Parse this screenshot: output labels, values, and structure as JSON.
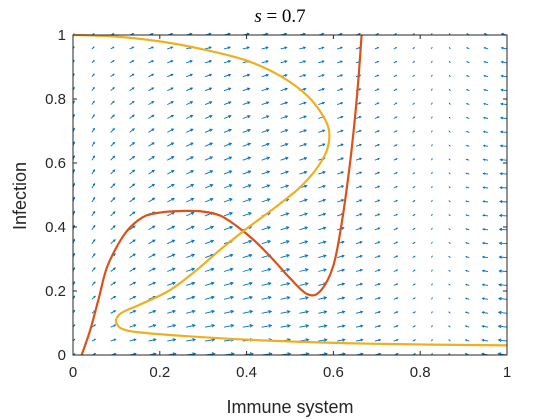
{
  "chart_data": {
    "type": "line",
    "title_var": "s",
    "title_eq": " = 0.7",
    "xlabel": "Immune system",
    "ylabel": "Infection",
    "xlim": [
      0,
      1
    ],
    "ylim": [
      0,
      1
    ],
    "xticks": [
      "0",
      "0.2",
      "0.4",
      "0.6",
      "0.8",
      "1"
    ],
    "yticks": [
      "0",
      "0.2",
      "0.4",
      "0.6",
      "0.8",
      "1"
    ],
    "grid": false,
    "series": [
      {
        "color": "#D95319",
        "points": [
          [
            0.02,
            0.0
          ],
          [
            0.04,
            0.08
          ],
          [
            0.06,
            0.18
          ],
          [
            0.08,
            0.28
          ],
          [
            0.12,
            0.38
          ],
          [
            0.16,
            0.43
          ],
          [
            0.2,
            0.445
          ],
          [
            0.25,
            0.45
          ],
          [
            0.3,
            0.448
          ],
          [
            0.34,
            0.435
          ],
          [
            0.38,
            0.4
          ],
          [
            0.42,
            0.355
          ],
          [
            0.46,
            0.3
          ],
          [
            0.5,
            0.24
          ],
          [
            0.54,
            0.19
          ],
          [
            0.57,
            0.2
          ],
          [
            0.6,
            0.28
          ],
          [
            0.62,
            0.42
          ],
          [
            0.64,
            0.62
          ],
          [
            0.655,
            0.82
          ],
          [
            0.665,
            1.0
          ]
        ]
      },
      {
        "color": "#EDB120",
        "points": [
          [
            0.0,
            1.0
          ],
          [
            0.1,
            0.995
          ],
          [
            0.2,
            0.98
          ],
          [
            0.3,
            0.955
          ],
          [
            0.4,
            0.92
          ],
          [
            0.48,
            0.87
          ],
          [
            0.54,
            0.81
          ],
          [
            0.575,
            0.75
          ],
          [
            0.59,
            0.7
          ],
          [
            0.585,
            0.64
          ],
          [
            0.56,
            0.58
          ],
          [
            0.52,
            0.52
          ],
          [
            0.46,
            0.455
          ],
          [
            0.4,
            0.395
          ],
          [
            0.34,
            0.33
          ],
          [
            0.28,
            0.26
          ],
          [
            0.22,
            0.2
          ],
          [
            0.15,
            0.155
          ],
          [
            0.11,
            0.13
          ],
          [
            0.1,
            0.1
          ],
          [
            0.13,
            0.075
          ],
          [
            0.25,
            0.06
          ],
          [
            0.45,
            0.045
          ],
          [
            0.7,
            0.035
          ],
          [
            1.0,
            0.03
          ]
        ]
      }
    ],
    "quiver_color": "#0072BD"
  }
}
